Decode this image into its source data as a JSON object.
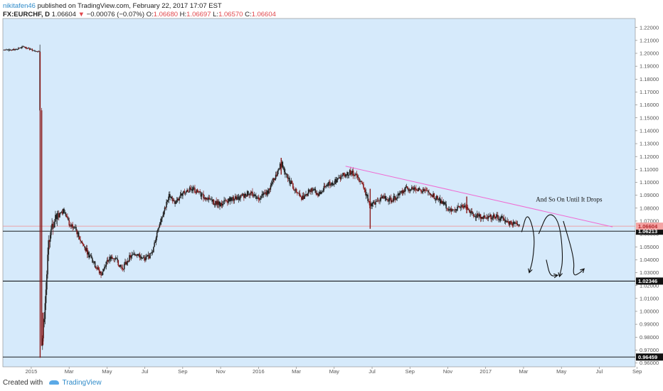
{
  "header": {
    "author": "nikitafen46",
    "published_text": "published on TradingView.com, February 22, 2017 17:07 EST",
    "symbol": "FX:EURCHF, D",
    "last": "1.06604",
    "change_arrow": "▼",
    "change": "−0.00076 (−0.07%)",
    "o_label": "O:",
    "o_value": "1.06680",
    "h_label": "H:",
    "h_value": "1.06697",
    "l_label": "L:",
    "l_value": "1.06570",
    "c_label": "C:",
    "c_value": "1.06604"
  },
  "footer": {
    "created_with": "Created with",
    "brand": "TradingView"
  },
  "colors": {
    "plot_bg": "#d6eafb",
    "candle": "#222222",
    "candle_down": "#8b1a1a",
    "trendline": "#f06ad2",
    "price_line": "#f28c8c",
    "price_tag": "#f4a3a3",
    "level_line": "#000000"
  },
  "chart_data": {
    "type": "candlestick",
    "symbol": "FX:EURCHF",
    "timeframe": "D",
    "ylim": [
      0.957,
      1.227
    ],
    "y_ticks": [
      "1.22000",
      "1.21000",
      "1.20000",
      "1.19000",
      "1.18000",
      "1.17000",
      "1.16000",
      "1.15000",
      "1.14000",
      "1.13000",
      "1.12000",
      "1.11000",
      "1.10000",
      "1.09000",
      "1.08000",
      "1.07000",
      "1.06000",
      "1.05000",
      "1.04000",
      "1.03000",
      "1.02000",
      "1.01000",
      "1.00000",
      "0.99000",
      "0.98000",
      "0.97000",
      "0.96000"
    ],
    "x_ticks": [
      {
        "label": "2015",
        "t": 0.0
      },
      {
        "label": "Mar",
        "t": 2.0
      },
      {
        "label": "May",
        "t": 4.0
      },
      {
        "label": "Jul",
        "t": 6.0
      },
      {
        "label": "Sep",
        "t": 8.0
      },
      {
        "label": "Nov",
        "t": 10.0
      },
      {
        "label": "2016",
        "t": 12.0
      },
      {
        "label": "Mar",
        "t": 14.0
      },
      {
        "label": "May",
        "t": 16.0
      },
      {
        "label": "Jul",
        "t": 18.0
      },
      {
        "label": "Sep",
        "t": 20.0
      },
      {
        "label": "Nov",
        "t": 22.0
      },
      {
        "label": "2017",
        "t": 24.0
      },
      {
        "label": "Mar",
        "t": 26.0
      },
      {
        "label": "May",
        "t": 28.0
      },
      {
        "label": "Jul",
        "t": 30.0
      },
      {
        "label": "Sep",
        "t": 32.0
      }
    ],
    "x_range": [
      -1.5,
      31.9
    ],
    "price_path": [
      {
        "t": -1.45,
        "v": 1.2025
      },
      {
        "t": -0.9,
        "v": 1.203
      },
      {
        "t": -0.4,
        "v": 1.205
      },
      {
        "t": 0.0,
        "v": 1.203
      },
      {
        "t": 0.45,
        "v": 1.201
      },
      {
        "t": 0.5,
        "v": 0.972
      },
      {
        "t": 0.6,
        "v": 0.98
      },
      {
        "t": 0.75,
        "v": 1.01
      },
      {
        "t": 0.9,
        "v": 1.05
      },
      {
        "t": 1.1,
        "v": 1.065
      },
      {
        "t": 1.4,
        "v": 1.075
      },
      {
        "t": 1.7,
        "v": 1.078
      },
      {
        "t": 2.0,
        "v": 1.068
      },
      {
        "t": 2.3,
        "v": 1.065
      },
      {
        "t": 2.6,
        "v": 1.055
      },
      {
        "t": 3.0,
        "v": 1.045
      },
      {
        "t": 3.4,
        "v": 1.035
      },
      {
        "t": 3.7,
        "v": 1.028
      },
      {
        "t": 4.0,
        "v": 1.04
      },
      {
        "t": 4.4,
        "v": 1.042
      },
      {
        "t": 4.8,
        "v": 1.033
      },
      {
        "t": 5.2,
        "v": 1.042
      },
      {
        "t": 5.6,
        "v": 1.045
      },
      {
        "t": 6.0,
        "v": 1.04
      },
      {
        "t": 6.4,
        "v": 1.045
      },
      {
        "t": 6.7,
        "v": 1.065
      },
      {
        "t": 7.0,
        "v": 1.078
      },
      {
        "t": 7.3,
        "v": 1.09
      },
      {
        "t": 7.6,
        "v": 1.083
      },
      {
        "t": 8.0,
        "v": 1.092
      },
      {
        "t": 8.5,
        "v": 1.095
      },
      {
        "t": 9.0,
        "v": 1.09
      },
      {
        "t": 9.5,
        "v": 1.085
      },
      {
        "t": 10.0,
        "v": 1.083
      },
      {
        "t": 10.5,
        "v": 1.087
      },
      {
        "t": 11.0,
        "v": 1.088
      },
      {
        "t": 11.5,
        "v": 1.092
      },
      {
        "t": 12.0,
        "v": 1.088
      },
      {
        "t": 12.5,
        "v": 1.093
      },
      {
        "t": 12.9,
        "v": 1.105
      },
      {
        "t": 13.2,
        "v": 1.115
      },
      {
        "t": 13.5,
        "v": 1.105
      },
      {
        "t": 13.9,
        "v": 1.095
      },
      {
        "t": 14.3,
        "v": 1.088
      },
      {
        "t": 14.8,
        "v": 1.095
      },
      {
        "t": 15.2,
        "v": 1.09
      },
      {
        "t": 15.6,
        "v": 1.098
      },
      {
        "t": 16.0,
        "v": 1.1
      },
      {
        "t": 16.4,
        "v": 1.105
      },
      {
        "t": 16.9,
        "v": 1.108
      },
      {
        "t": 17.3,
        "v": 1.103
      },
      {
        "t": 17.6,
        "v": 1.095
      },
      {
        "t": 17.9,
        "v": 1.082
      },
      {
        "t": 18.2,
        "v": 1.085
      },
      {
        "t": 18.6,
        "v": 1.088
      },
      {
        "t": 19.0,
        "v": 1.086
      },
      {
        "t": 19.4,
        "v": 1.09
      },
      {
        "t": 19.8,
        "v": 1.095
      },
      {
        "t": 20.2,
        "v": 1.096
      },
      {
        "t": 20.6,
        "v": 1.094
      },
      {
        "t": 21.0,
        "v": 1.092
      },
      {
        "t": 21.4,
        "v": 1.088
      },
      {
        "t": 21.8,
        "v": 1.083
      },
      {
        "t": 22.2,
        "v": 1.078
      },
      {
        "t": 22.6,
        "v": 1.08
      },
      {
        "t": 22.9,
        "v": 1.082
      },
      {
        "t": 23.2,
        "v": 1.076
      },
      {
        "t": 23.6,
        "v": 1.074
      },
      {
        "t": 24.0,
        "v": 1.072
      },
      {
        "t": 24.4,
        "v": 1.074
      },
      {
        "t": 24.8,
        "v": 1.072
      },
      {
        "t": 25.2,
        "v": 1.069
      },
      {
        "t": 25.6,
        "v": 1.067
      },
      {
        "t": 25.8,
        "v": 1.066
      }
    ],
    "spikes": [
      {
        "t": 0.47,
        "low": 0.964,
        "high": 1.201
      },
      {
        "t": 0.62,
        "low": 0.974,
        "high": 0.999
      },
      {
        "t": 17.9,
        "low": 1.064,
        "high": 1.095
      },
      {
        "t": 23.0,
        "low": 1.076,
        "high": 1.089
      },
      {
        "t": 13.2,
        "low": 1.106,
        "high": 1.119
      }
    ],
    "price_line": {
      "value": 1.06604,
      "label": "1.06604"
    },
    "levels": [
      {
        "value": 1.06213,
        "label": "1.06213"
      },
      {
        "value": 1.02346,
        "label": "1.02346"
      },
      {
        "value": 0.96459,
        "label": "0.96459"
      }
    ],
    "trendline": {
      "from": {
        "t": 16.6,
        "v": 1.1125
      },
      "to": {
        "t": 30.7,
        "v": 1.0655
      }
    },
    "annotation": {
      "text": "And So On Until It Drops",
      "t": 28.4,
      "v": 1.085
    },
    "drawings": [
      {
        "type": "arrow-curve",
        "points": [
          [
            25.9,
            1.0615
          ],
          [
            26.2,
            1.0775
          ],
          [
            26.6,
            1.06
          ],
          [
            26.5,
            1.04
          ],
          [
            26.3,
            1.03
          ]
        ]
      },
      {
        "type": "arrow-curve",
        "points": [
          [
            26.8,
            1.06
          ],
          [
            27.3,
            1.0775
          ],
          [
            27.9,
            1.07
          ],
          [
            28.1,
            1.04
          ],
          [
            27.9,
            1.027
          ]
        ]
      },
      {
        "type": "arrow-curve",
        "points": [
          [
            27.2,
            1.04
          ],
          [
            27.4,
            1.027
          ],
          [
            27.8,
            1.028
          ]
        ]
      },
      {
        "type": "arrow-curve",
        "points": [
          [
            28.1,
            1.07
          ],
          [
            28.7,
            1.04
          ],
          [
            28.6,
            1.027
          ],
          [
            29.0,
            1.03
          ],
          [
            29.2,
            1.033
          ]
        ]
      }
    ]
  }
}
